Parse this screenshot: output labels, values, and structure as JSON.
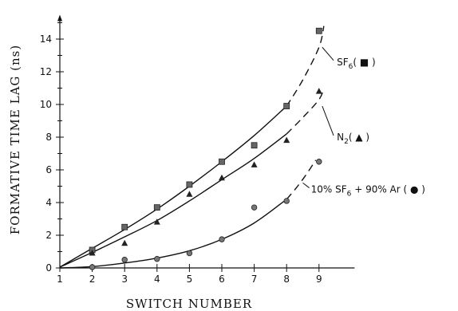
{
  "chart_data": {
    "type": "scatter",
    "title": "",
    "xlabel": "SWITCH NUMBER",
    "ylabel": "FORMATIVE TIME LAG (ns)",
    "xlim": [
      1,
      10
    ],
    "ylim": [
      0,
      15
    ],
    "xticks": [
      1,
      2,
      3,
      4,
      5,
      6,
      7,
      8,
      9
    ],
    "yticks": [
      0,
      2,
      4,
      6,
      8,
      10,
      12,
      14
    ],
    "grid": false,
    "series": [
      {
        "name": "SF6",
        "marker": "square",
        "x": [
          2,
          3,
          4,
          5,
          6,
          7,
          8,
          9
        ],
        "y": [
          1.1,
          2.5,
          3.7,
          5.1,
          6.5,
          7.5,
          9.9,
          14.5
        ],
        "fit_solid": [
          [
            1,
            0.05
          ],
          [
            2,
            1.2
          ],
          [
            3,
            2.35
          ],
          [
            4,
            3.6
          ],
          [
            5,
            5.0
          ],
          [
            6,
            6.5
          ],
          [
            7,
            8.1
          ],
          [
            8,
            9.9
          ]
        ],
        "fit_dashed": [
          [
            8,
            9.9
          ],
          [
            8.5,
            11.5
          ],
          [
            9,
            13.5
          ],
          [
            9.15,
            14.8
          ]
        ]
      },
      {
        "name": "N2",
        "marker": "triangle",
        "x": [
          2,
          3,
          4,
          5,
          6,
          7,
          8,
          9
        ],
        "y": [
          0.9,
          1.5,
          2.8,
          4.5,
          5.5,
          6.3,
          7.8,
          10.8
        ],
        "fit_solid": [
          [
            1,
            0.05
          ],
          [
            2,
            0.95
          ],
          [
            3,
            1.9
          ],
          [
            4,
            2.9
          ],
          [
            5,
            4.1
          ],
          [
            6,
            5.4
          ],
          [
            7,
            6.7
          ],
          [
            8,
            8.2
          ]
        ],
        "fit_dashed": [
          [
            8,
            8.2
          ],
          [
            8.5,
            9.2
          ],
          [
            9,
            10.3
          ],
          [
            9.15,
            11.0
          ]
        ]
      },
      {
        "name": "10% SF6 + 90% Ar",
        "marker": "circle",
        "x": [
          2,
          3,
          4,
          5,
          6,
          7,
          8,
          9
        ],
        "y": [
          0.05,
          0.5,
          0.55,
          0.9,
          1.75,
          3.7,
          4.1,
          6.5
        ],
        "fit_solid": [
          [
            1,
            0.0
          ],
          [
            2,
            0.08
          ],
          [
            3,
            0.3
          ],
          [
            4,
            0.6
          ],
          [
            5,
            1.05
          ],
          [
            6,
            1.75
          ],
          [
            7,
            2.75
          ],
          [
            8,
            4.2
          ]
        ],
        "fit_dashed": [
          [
            8,
            4.2
          ],
          [
            8.3,
            4.9
          ],
          [
            8.6,
            5.7
          ],
          [
            8.9,
            6.6
          ]
        ]
      }
    ],
    "annotations": [
      {
        "series": 0,
        "main": "SF",
        "sub": "6",
        "tail": "( ■ )",
        "label_x": 9.55,
        "label_y": 12.4,
        "leader_from": [
          9.1,
          13.5
        ],
        "leader_to": [
          9.45,
          12.7
        ]
      },
      {
        "series": 1,
        "main": "N",
        "sub": "2",
        "tail": "( ▲ )",
        "label_x": 9.55,
        "label_y": 7.8,
        "leader_from": [
          9.1,
          9.9
        ],
        "leader_to": [
          9.45,
          8.1
        ]
      },
      {
        "series": 2,
        "main": "10% SF",
        "sub": "6",
        "tail": " + 90% Ar ( ● )",
        "label_x": 8.75,
        "label_y": 4.6,
        "leader_from": [
          8.5,
          5.2
        ],
        "leader_to": [
          8.7,
          4.9
        ]
      }
    ]
  }
}
